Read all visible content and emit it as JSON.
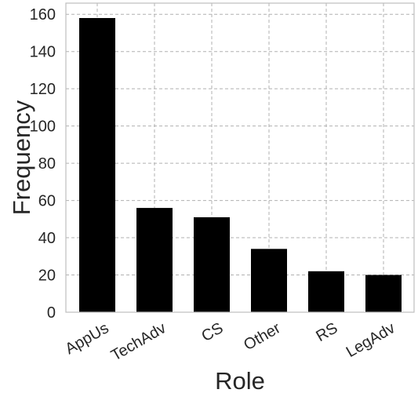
{
  "chart_data": {
    "type": "bar",
    "title": "",
    "xlabel": "Role",
    "ylabel": "Frequency",
    "categories": [
      "AppUs",
      "TechAdv",
      "CS",
      "Other",
      "RS",
      "LegAdv"
    ],
    "values": [
      158,
      56,
      51,
      34,
      22,
      20
    ],
    "ylim": [
      0,
      166
    ],
    "yticks": [
      0,
      20,
      40,
      60,
      80,
      100,
      120,
      140,
      160
    ],
    "grid": true,
    "legend": "none",
    "bar_color": "#000000",
    "background_color": "#ffffff",
    "grid_color": "#b0b0b0"
  }
}
